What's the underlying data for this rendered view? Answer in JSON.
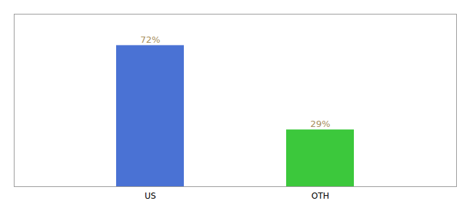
{
  "chart_data": {
    "type": "bar",
    "categories": [
      "US",
      "OTH"
    ],
    "values": [
      72,
      29
    ],
    "value_labels": [
      "72%",
      "29%"
    ],
    "colors": [
      "#4A72D4",
      "#3CC83C"
    ],
    "ylim": [
      0,
      88
    ],
    "yticks": [],
    "data_labels": true,
    "tick_labels": "x",
    "grid": false
  }
}
